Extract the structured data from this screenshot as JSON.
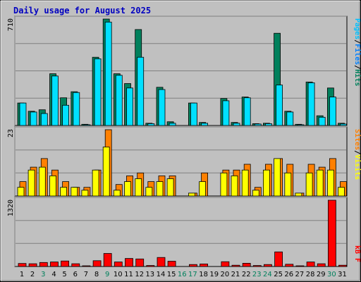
{
  "chart_data": [
    {
      "type": "bar",
      "title": "Daily usage for August 2025",
      "panel": "hits-files-pages",
      "ylim": [
        0,
        710
      ],
      "ymax_label": "710",
      "legend": [
        "Pages",
        "/",
        "Files",
        "/",
        "Hits"
      ],
      "categories": [
        "1",
        "2",
        "3",
        "4",
        "5",
        "6",
        "7",
        "8",
        "9",
        "10",
        "11",
        "12",
        "13",
        "14",
        "15",
        "16",
        "17",
        "18",
        "19",
        "20",
        "21",
        "22",
        "23",
        "24",
        "25",
        "26",
        "27",
        "28",
        "29",
        "30",
        "31"
      ],
      "series": [
        {
          "name": "Hits",
          "values": [
            150,
            95,
            105,
            345,
            185,
            225,
            8,
            455,
            710,
            345,
            280,
            640,
            15,
            255,
            25,
            0,
            150,
            20,
            0,
            180,
            20,
            190,
            12,
            15,
            615,
            95,
            8,
            290,
            65,
            250,
            15
          ]
        },
        {
          "name": "Files",
          "values": [
            150,
            90,
            80,
            330,
            135,
            220,
            5,
            445,
            690,
            335,
            250,
            455,
            12,
            240,
            15,
            0,
            150,
            15,
            0,
            165,
            15,
            185,
            10,
            12,
            270,
            90,
            5,
            285,
            55,
            190,
            10
          ]
        },
        {
          "name": "Pages",
          "values": [
            0,
            0,
            0,
            0,
            0,
            0,
            0,
            0,
            0,
            0,
            0,
            0,
            0,
            0,
            0,
            0,
            0,
            0,
            0,
            0,
            0,
            0,
            0,
            0,
            0,
            0,
            0,
            0,
            0,
            0,
            0
          ]
        }
      ]
    },
    {
      "type": "bar",
      "panel": "visits-sites",
      "ylim": [
        0,
        23
      ],
      "ymax_label": "23",
      "legend": [
        "Sites",
        "/",
        "Visits"
      ],
      "categories": [
        "1",
        "2",
        "3",
        "4",
        "5",
        "6",
        "7",
        "8",
        "9",
        "10",
        "11",
        "12",
        "13",
        "14",
        "15",
        "16",
        "17",
        "18",
        "19",
        "20",
        "21",
        "22",
        "23",
        "24",
        "25",
        "26",
        "27",
        "28",
        "29",
        "30",
        "31"
      ],
      "series": [
        {
          "name": "Visits",
          "values": [
            5,
            10,
            13,
            9,
            5,
            3,
            3,
            9,
            23,
            4,
            7,
            8,
            5,
            7,
            7,
            0,
            1,
            8,
            0,
            9,
            9,
            11,
            3,
            11,
            13,
            11,
            1,
            11,
            10,
            13,
            5
          ]
        },
        {
          "name": "Sites",
          "values": [
            3,
            9,
            10,
            7,
            3,
            3,
            2,
            9,
            17,
            2,
            5,
            6,
            3,
            5,
            6,
            0,
            1,
            5,
            0,
            8,
            7,
            9,
            2,
            9,
            13,
            8,
            1,
            8,
            9,
            9,
            3
          ]
        }
      ]
    },
    {
      "type": "bar",
      "panel": "kbytes",
      "ylim": [
        0,
        1320
      ],
      "ymax_label": "1320",
      "legend": [
        "kB F"
      ],
      "categories": [
        "1",
        "2",
        "3",
        "4",
        "5",
        "6",
        "7",
        "8",
        "9",
        "10",
        "11",
        "12",
        "13",
        "14",
        "15",
        "16",
        "17",
        "18",
        "19",
        "20",
        "21",
        "22",
        "23",
        "24",
        "25",
        "26",
        "27",
        "28",
        "29",
        "30",
        "31"
      ],
      "series": [
        {
          "name": "kB F",
          "values": [
            60,
            55,
            80,
            90,
            110,
            55,
            10,
            115,
            260,
            90,
            160,
            150,
            20,
            180,
            105,
            0,
            40,
            50,
            0,
            95,
            25,
            65,
            20,
            40,
            290,
            45,
            10,
            90,
            55,
            1320,
            25
          ]
        }
      ]
    }
  ],
  "weekend_days": [
    3,
    9,
    16,
    17,
    23,
    24,
    30
  ],
  "colors": {
    "hits": "#00805c",
    "files": "#00e0ff",
    "pages": "#00c0ff",
    "visits": "#ff8000",
    "sites": "#ffff00",
    "kbytes": "#ff0000",
    "title": "#0000c0",
    "weekday_label": "#000000",
    "weekend_label": "#00805c",
    "plot_bg": "#c0c0c0"
  }
}
